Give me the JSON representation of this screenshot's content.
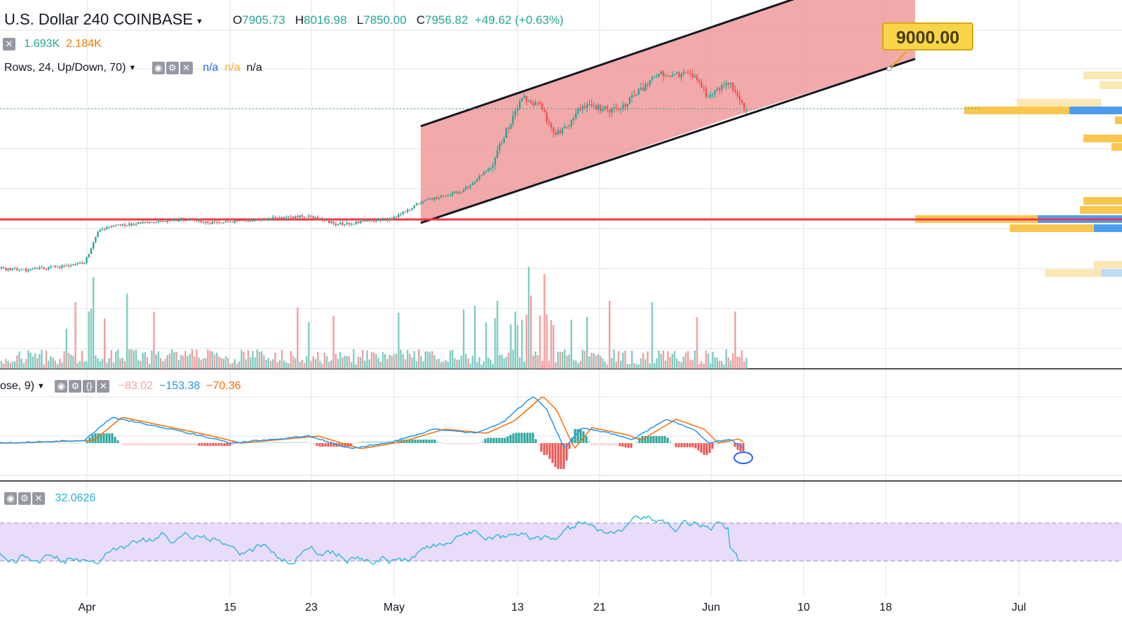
{
  "header": {
    "title": "U.S. Dollar",
    "interval": "240",
    "exchange": "COINBASE",
    "ohlc": {
      "o_label": "O",
      "o": "7905.73",
      "h_label": "H",
      "h": "8016.98",
      "l_label": "L",
      "l": "7850.00",
      "c_label": "C",
      "c": "7956.82",
      "change": "+49.62 (+0.63%)"
    }
  },
  "volume_legend": {
    "v1": "1.693K",
    "v2": "2.184K"
  },
  "vp_legend": {
    "label": "Rows, 24, Up/Down, 70)",
    "v1": "n/a",
    "v2": "n/a",
    "v3": "n/a"
  },
  "macd_legend": {
    "label": "ose, 9)",
    "hist": "−83.02",
    "macd": "−153.38",
    "signal": "−70.36"
  },
  "rsi_legend": {
    "value": "32.0626"
  },
  "price_label": "9000.00",
  "x_ticks": [
    "Apr",
    "15",
    "23",
    "May",
    "13",
    "21",
    "Jun",
    "10",
    "18",
    "Jul"
  ],
  "colors": {
    "up": "#26a69a",
    "down": "#ef5350",
    "channel": "#ef9a9a",
    "support": "#f23645",
    "rsi_band": "#e9dcfb"
  },
  "chart_data": [
    {
      "type": "candlestick",
      "title": "U.S. Dollar 240 COINBASE",
      "x_ticks": [
        "Apr",
        "15",
        "23",
        "May",
        "13",
        "21",
        "Jun",
        "10",
        "18",
        "Jul"
      ],
      "last": {
        "open": 7905.73,
        "high": 8016.98,
        "low": 7850.0,
        "close": 7956.82,
        "change": 49.62,
        "change_pct": 0.63
      },
      "annotations": [
        "ascending channel",
        "horizontal support line",
        "target 9000.00"
      ],
      "trend_points": [
        5900,
        5950,
        5930,
        5880,
        5920,
        5960,
        6150,
        7050,
        8200,
        7950,
        8000,
        8650,
        8500,
        7956
      ]
    },
    {
      "type": "bar",
      "title": "Volume",
      "values": {
        "v1": "1.693K",
        "v2": "2.184K"
      }
    },
    {
      "type": "line",
      "title": "MACD",
      "values": {
        "histogram": -83.02,
        "macd": -153.38,
        "signal": -70.36
      }
    },
    {
      "type": "line",
      "title": "RSI",
      "last": 32.0626,
      "band": [
        30,
        70
      ]
    }
  ]
}
